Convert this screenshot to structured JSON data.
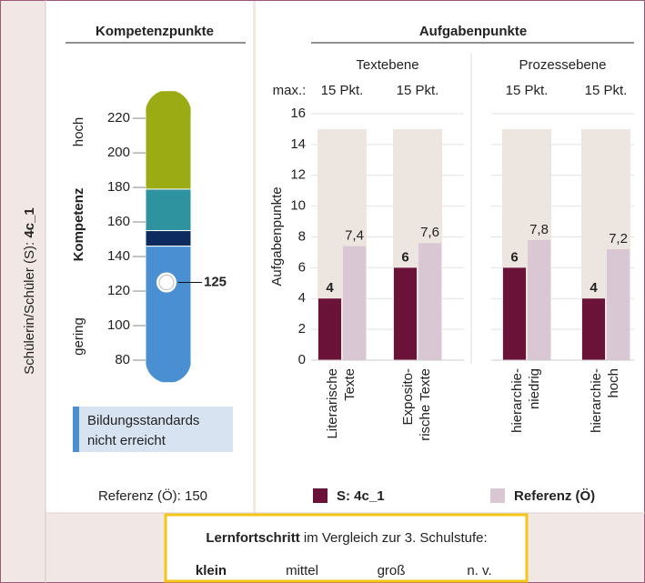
{
  "side_label": "Schülerin/Schüler (S):",
  "student": "4c_1",
  "chart_data": [
    {
      "type": "scale",
      "title": "Kompetenzpunkte",
      "ylim": [
        67,
        236
      ],
      "yticks": [
        80,
        100,
        120,
        140,
        160,
        180,
        200,
        220
      ],
      "side_labels": [
        "hoch",
        "Kompetenz",
        "gering"
      ],
      "bands": [
        {
          "from": 179,
          "to": 236,
          "color": "#9bab13"
        },
        {
          "from": 155,
          "to": 179,
          "color": "#2e939e"
        },
        {
          "from": 146,
          "to": 155,
          "color": "#0d2b5e"
        },
        {
          "from": 67,
          "to": 146,
          "color": "#4b8fd3"
        }
      ],
      "value": 125,
      "legend_lines": [
        "Bildungsstandards",
        "nicht erreicht"
      ],
      "reference_label": "Referenz (Ö): 150"
    },
    {
      "type": "bar",
      "title": "Aufgabenpunkte",
      "y_label": "Aufgabenpunkte",
      "max_prefix": "max.:",
      "ylim": [
        0,
        16
      ],
      "yticks": [
        0,
        2,
        4,
        6,
        8,
        10,
        12,
        14,
        16
      ],
      "grid": true,
      "groups": [
        {
          "name": "Textebene",
          "categories": [
            [
              "Literarische",
              "Texte"
            ],
            [
              "Exposito-",
              "rische Texte"
            ]
          ],
          "max_labels": [
            "15 Pkt.",
            "15 Pkt."
          ]
        },
        {
          "name": "Prozessebene",
          "categories": [
            [
              "hierarchie-",
              "niedrig"
            ],
            [
              "hierarchie-",
              "hoch"
            ]
          ],
          "max_labels": [
            "15 Pkt.",
            "15 Pkt."
          ]
        }
      ],
      "max_values": [
        15,
        15,
        15,
        15
      ],
      "max_color": "#ede5e0",
      "series": [
        {
          "name": "S: 4c_1",
          "color": "#6b1239",
          "values": [
            4,
            6,
            6,
            4
          ]
        },
        {
          "name": "Referenz (Ö)",
          "color": "#d9c7d3",
          "values": [
            7.4,
            7.6,
            7.8,
            7.2
          ],
          "value_labels": [
            "7,4",
            "7,6",
            "7,8",
            "7,2"
          ]
        }
      ]
    }
  ],
  "progress": {
    "label_bold": "Lernfortschritt",
    "label_rest": " im Vergleich zur 3. Schulstufe:",
    "options": [
      "klein",
      "mittel",
      "groß",
      "n. v."
    ],
    "selected": 0
  }
}
